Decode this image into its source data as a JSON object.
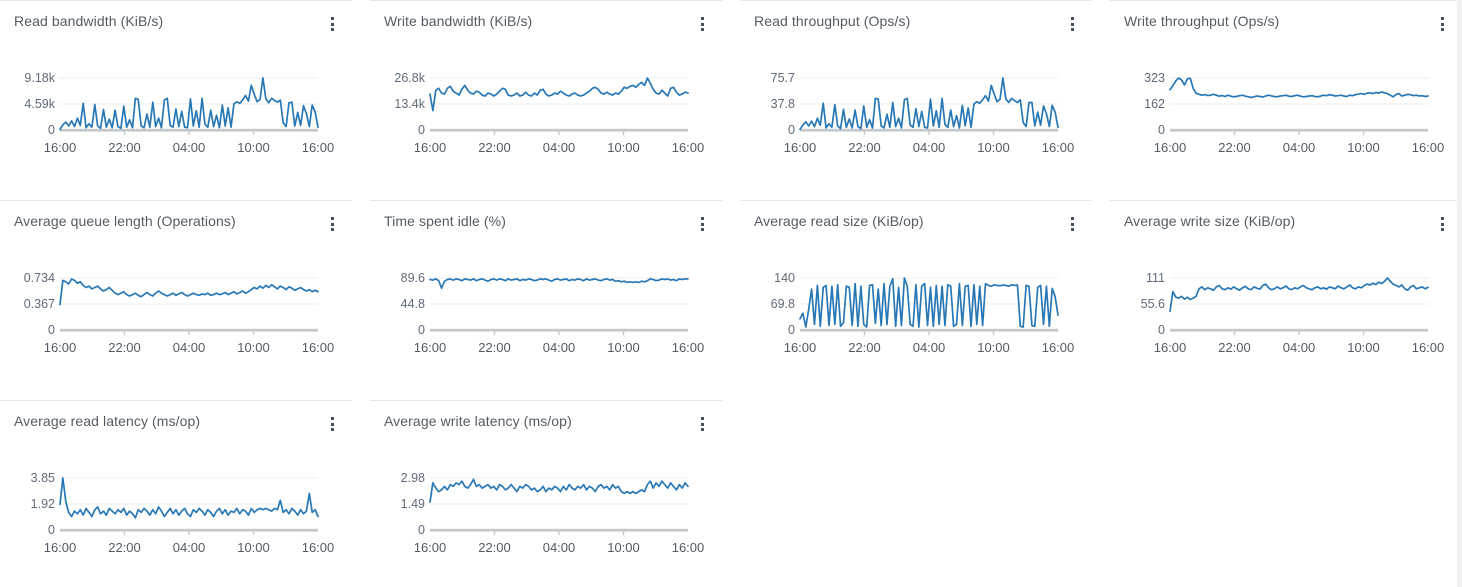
{
  "colors": {
    "line": "#2878b5",
    "grid": "#ececec",
    "baseline": "#c5c8ca",
    "title": "#545b64",
    "tick_label": "#5f6b7a",
    "x_tick_label": "#545b64",
    "card_border": "#e5e7e9",
    "menu_icon": "#414d5c",
    "background": "#ffffff"
  },
  "menu_icon": "vertical-ellipsis",
  "chart_data": [
    {
      "type": "line",
      "title": "Read bandwidth (KiB/s)",
      "y_max": 9.18,
      "y_tick_labels": [
        "9.18k",
        "4.59k",
        "0"
      ],
      "x_tick_labels": [
        "16:00",
        "22:00",
        "04:00",
        "10:00",
        "16:00"
      ],
      "legend": "off",
      "grid": "horizontal",
      "values": [
        0.1,
        0.9,
        1.4,
        0.7,
        1.6,
        0.6,
        2.1,
        0.8,
        4.7,
        0.4,
        1.1,
        0.5,
        4.5,
        0.7,
        0.3,
        3.6,
        0.5,
        1.9,
        0.4,
        3.5,
        0.6,
        0.3,
        4.2,
        0.5,
        1.8,
        0.4,
        5.6,
        5.4,
        0.7,
        0.4,
        2.8,
        0.5,
        4.9,
        0.6,
        2.1,
        0.4,
        5.3,
        5.6,
        0.8,
        0.5,
        3.7,
        0.6,
        3.3,
        0.5,
        0.4,
        5.5,
        0.7,
        3.4,
        0.5,
        5.6,
        1.0,
        0.5,
        3.5,
        0.6,
        2.6,
        0.4,
        4.4,
        0.7,
        3.9,
        0.5,
        4.6,
        5.0,
        4.7,
        5.3,
        6.1,
        5.1,
        7.9,
        6.3,
        5.0,
        5.4,
        9.18,
        5.5,
        4.8,
        5.6,
        5.2,
        4.9,
        5.3,
        1.3,
        0.6,
        4.8,
        4.9,
        0.7,
        3.1,
        0.8,
        4.3,
        2.9,
        0.6,
        4.4,
        3.2,
        0.5
      ]
    },
    {
      "type": "line",
      "title": "Write bandwidth (KiB/s)",
      "y_max": 26.8,
      "y_tick_labels": [
        "26.8k",
        "13.4k",
        "0"
      ],
      "x_tick_labels": [
        "16:00",
        "22:00",
        "04:00",
        "10:00",
        "16:00"
      ],
      "legend": "off",
      "grid": "horizontal",
      "values": [
        18.5,
        10,
        20.5,
        21.5,
        19,
        18.5,
        21.5,
        22.5,
        20,
        19,
        18,
        21,
        23,
        20.5,
        19,
        18.5,
        20,
        19.5,
        18,
        17.5,
        19,
        18.5,
        17.5,
        18.5,
        20,
        21.5,
        21,
        18,
        17.5,
        18,
        19,
        17.5,
        18,
        19.5,
        18,
        17.5,
        19,
        18,
        20.5,
        21,
        18.5,
        17.5,
        18,
        19,
        18.5,
        20,
        19,
        18,
        17.5,
        18.5,
        19,
        18,
        17.5,
        18,
        19,
        20,
        21.5,
        22,
        21,
        19,
        18.5,
        19.5,
        18.5,
        18,
        19,
        18.5,
        20,
        22,
        21.5,
        22.5,
        23,
        22,
        23.5,
        24.5,
        23,
        26.8,
        24,
        21,
        19,
        18.5,
        20.5,
        19,
        17.5,
        21.5,
        22,
        19.5,
        18,
        18.5,
        19.5,
        19
      ]
    },
    {
      "type": "line",
      "title": "Read throughput (Ops/s)",
      "y_max": 75.7,
      "y_tick_labels": [
        "75.7",
        "37.8",
        "0"
      ],
      "x_tick_labels": [
        "16:00",
        "22:00",
        "04:00",
        "10:00",
        "16:00"
      ],
      "legend": "off",
      "grid": "horizontal",
      "values": [
        1,
        7,
        12,
        6,
        13,
        5,
        17,
        7,
        39,
        3,
        9,
        4,
        37,
        6,
        2,
        30,
        4,
        16,
        3,
        29,
        5,
        2,
        35,
        4,
        15,
        3,
        46,
        45,
        6,
        3,
        23,
        4,
        40,
        5,
        17,
        3,
        44,
        46,
        7,
        4,
        31,
        5,
        27,
        4,
        3,
        45,
        6,
        28,
        4,
        46,
        8,
        4,
        29,
        5,
        21,
        3,
        36,
        6,
        32,
        4,
        38,
        41,
        39,
        44,
        50,
        42,
        65,
        52,
        41,
        45,
        75.7,
        45,
        40,
        46,
        43,
        40,
        44,
        11,
        5,
        40,
        40,
        6,
        26,
        7,
        35,
        24,
        5,
        36,
        26,
        4
      ]
    },
    {
      "type": "line",
      "title": "Write throughput (Ops/s)",
      "y_max": 323,
      "y_tick_labels": [
        "323",
        "162",
        "0"
      ],
      "x_tick_labels": [
        "16:00",
        "22:00",
        "04:00",
        "10:00",
        "16:00"
      ],
      "legend": "off",
      "grid": "horizontal",
      "values": [
        250,
        275,
        305,
        323,
        310,
        280,
        318,
        322,
        258,
        228,
        222,
        216,
        220,
        214,
        216,
        222,
        216,
        210,
        214,
        208,
        216,
        210,
        206,
        209,
        213,
        216,
        210,
        206,
        202,
        206,
        211,
        208,
        205,
        211,
        216,
        212,
        208,
        206,
        211,
        213,
        216,
        210,
        208,
        213,
        216,
        210,
        206,
        208,
        211,
        213,
        208,
        206,
        211,
        216,
        213,
        219,
        216,
        211,
        213,
        216,
        211,
        208,
        216,
        213,
        219,
        223,
        226,
        221,
        229,
        231,
        226,
        233,
        229,
        236,
        231,
        226,
        216,
        206,
        221,
        226,
        211,
        216,
        221,
        219,
        213,
        216,
        211,
        213,
        208,
        211
      ]
    },
    {
      "type": "line",
      "title": "Average queue length (Operations)",
      "y_max": 0.734,
      "y_tick_labels": [
        "0.734",
        "0.367",
        "0"
      ],
      "x_tick_labels": [
        "16:00",
        "22:00",
        "04:00",
        "10:00",
        "16:00"
      ],
      "legend": "off",
      "grid": "horizontal",
      "values": [
        0.36,
        0.7,
        0.68,
        0.65,
        0.72,
        0.7,
        0.66,
        0.68,
        0.63,
        0.6,
        0.62,
        0.58,
        0.6,
        0.62,
        0.58,
        0.55,
        0.57,
        0.6,
        0.56,
        0.52,
        0.5,
        0.52,
        0.54,
        0.5,
        0.48,
        0.5,
        0.52,
        0.49,
        0.47,
        0.5,
        0.53,
        0.5,
        0.48,
        0.52,
        0.55,
        0.52,
        0.5,
        0.48,
        0.5,
        0.52,
        0.49,
        0.51,
        0.53,
        0.5,
        0.48,
        0.5,
        0.52,
        0.5,
        0.49,
        0.51,
        0.5,
        0.52,
        0.49,
        0.5,
        0.52,
        0.5,
        0.51,
        0.53,
        0.5,
        0.52,
        0.54,
        0.51,
        0.53,
        0.55,
        0.52,
        0.54,
        0.57,
        0.6,
        0.58,
        0.62,
        0.59,
        0.63,
        0.6,
        0.64,
        0.61,
        0.58,
        0.62,
        0.6,
        0.57,
        0.61,
        0.59,
        0.56,
        0.58,
        0.6,
        0.57,
        0.55,
        0.57,
        0.54,
        0.56,
        0.54
      ]
    },
    {
      "type": "line",
      "title": "Time spent idle (%)",
      "y_max": 89.6,
      "y_tick_labels": [
        "89.6",
        "44.8",
        "0"
      ],
      "x_tick_labels": [
        "16:00",
        "22:00",
        "04:00",
        "10:00",
        "16:00"
      ],
      "legend": "off",
      "grid": "horizontal",
      "values": [
        87,
        86,
        88,
        85,
        72,
        84,
        87,
        88,
        86,
        88,
        87,
        85,
        88,
        87,
        86,
        88,
        85,
        87,
        88,
        86,
        84,
        87,
        88,
        86,
        88,
        87,
        85,
        88,
        86,
        87,
        88,
        85,
        87,
        86,
        88,
        87,
        85,
        86,
        88,
        87,
        88,
        86,
        84,
        87,
        88,
        86,
        87,
        88,
        85,
        87,
        86,
        88,
        87,
        85,
        88,
        86,
        87,
        88,
        86,
        85,
        87,
        88,
        86,
        87,
        84,
        85,
        83,
        84,
        82,
        83,
        82,
        83,
        82,
        84,
        83,
        85,
        88,
        87,
        85,
        86,
        88,
        87,
        88,
        86,
        87,
        85,
        88,
        87,
        88,
        88
      ]
    },
    {
      "type": "line",
      "title": "Average read size (KiB/op)",
      "y_max": 140,
      "y_tick_labels": [
        "140",
        "69.8",
        "0"
      ],
      "x_tick_labels": [
        "16:00",
        "22:00",
        "04:00",
        "10:00",
        "16:00"
      ],
      "legend": "off",
      "grid": "horizontal",
      "values": [
        30,
        45,
        8,
        55,
        110,
        15,
        120,
        10,
        115,
        120,
        12,
        118,
        15,
        122,
        10,
        20,
        118,
        115,
        12,
        125,
        10,
        118,
        15,
        8,
        120,
        122,
        18,
        110,
        12,
        125,
        15,
        118,
        138,
        10,
        115,
        12,
        140,
        118,
        15,
        10,
        122,
        8,
        118,
        125,
        12,
        115,
        10,
        120,
        15,
        118,
        12,
        122,
        118,
        10,
        15,
        125,
        12,
        118,
        120,
        10,
        122,
        15,
        118,
        12,
        125,
        120,
        118,
        122,
        120,
        119,
        121,
        120,
        118,
        122,
        120,
        121,
        10,
        8,
        120,
        118,
        12,
        10,
        115,
        120,
        15,
        118,
        10,
        112,
        90,
        40
      ]
    },
    {
      "type": "line",
      "title": "Average write size (KiB/op)",
      "y_max": 111,
      "y_tick_labels": [
        "111",
        "55.6",
        "0"
      ],
      "x_tick_labels": [
        "16:00",
        "22:00",
        "04:00",
        "10:00",
        "16:00"
      ],
      "legend": "off",
      "grid": "horizontal",
      "values": [
        40,
        82,
        70,
        68,
        72,
        66,
        70,
        65,
        68,
        72,
        88,
        92,
        86,
        90,
        88,
        85,
        92,
        95,
        88,
        86,
        90,
        87,
        92,
        88,
        85,
        90,
        93,
        88,
        86,
        92,
        89,
        87,
        95,
        98,
        90,
        86,
        88,
        92,
        88,
        90,
        94,
        88,
        86,
        90,
        88,
        92,
        95,
        90,
        88,
        86,
        90,
        92,
        88,
        90,
        87,
        92,
        90,
        88,
        94,
        90,
        88,
        92,
        96,
        90,
        88,
        92,
        90,
        95,
        98,
        96,
        100,
        97,
        102,
        99,
        104,
        111,
        104,
        98,
        95,
        92,
        96,
        88,
        85,
        92,
        95,
        88,
        90,
        92,
        88,
        91
      ]
    },
    {
      "type": "line",
      "title": "Average read latency (ms/op)",
      "y_max": 3.85,
      "y_tick_labels": [
        "3.85",
        "1.92",
        "0"
      ],
      "x_tick_labels": [
        "16:00",
        "22:00",
        "04:00",
        "10:00",
        "16:00"
      ],
      "legend": "off",
      "grid": "horizontal",
      "values": [
        1.9,
        3.85,
        2.1,
        1.3,
        1.0,
        1.4,
        1.2,
        1.5,
        1.1,
        1.6,
        1.3,
        1.0,
        1.5,
        1.7,
        1.2,
        1.4,
        1.1,
        1.6,
        1.4,
        1.2,
        1.5,
        1.3,
        1.6,
        1.1,
        1.4,
        1.2,
        0.9,
        1.5,
        1.3,
        1.6,
        1.4,
        1.1,
        1.5,
        1.2,
        1.7,
        1.4,
        1.0,
        1.3,
        1.6,
        1.2,
        1.5,
        1.1,
        1.4,
        1.6,
        1.2,
        1.0,
        1.5,
        1.3,
        1.6,
        1.4,
        1.1,
        1.5,
        1.3,
        1.0,
        1.4,
        1.6,
        1.2,
        1.5,
        1.1,
        1.4,
        1.3,
        1.6,
        1.2,
        1.5,
        1.4,
        1.1,
        1.6,
        1.3,
        1.5,
        1.6,
        1.5,
        1.6,
        1.5,
        1.4,
        1.6,
        1.5,
        2.2,
        1.3,
        1.5,
        1.2,
        1.6,
        1.4,
        1.1,
        1.5,
        1.2,
        1.4,
        2.7,
        1.3,
        1.5,
        1.0
      ]
    },
    {
      "type": "line",
      "title": "Average write latency (ms/op)",
      "y_max": 2.98,
      "y_tick_labels": [
        "2.98",
        "1.49",
        "0"
      ],
      "x_tick_labels": [
        "16:00",
        "22:00",
        "04:00",
        "10:00",
        "16:00"
      ],
      "legend": "off",
      "grid": "horizontal",
      "values": [
        1.6,
        2.7,
        2.4,
        2.2,
        2.3,
        2.5,
        2.3,
        2.6,
        2.5,
        2.7,
        2.6,
        2.8,
        2.5,
        2.4,
        2.6,
        2.9,
        2.5,
        2.6,
        2.4,
        2.5,
        2.6,
        2.4,
        2.5,
        2.3,
        2.6,
        2.5,
        2.3,
        2.4,
        2.6,
        2.4,
        2.2,
        2.5,
        2.4,
        2.6,
        2.5,
        2.3,
        2.4,
        2.2,
        2.3,
        2.5,
        2.2,
        2.4,
        2.3,
        2.5,
        2.4,
        2.2,
        2.5,
        2.3,
        2.6,
        2.4,
        2.3,
        2.5,
        2.4,
        2.6,
        2.3,
        2.5,
        2.4,
        2.2,
        2.5,
        2.6,
        2.4,
        2.5,
        2.3,
        2.6,
        2.4,
        2.5,
        2.2,
        2.1,
        2.2,
        2.1,
        2.2,
        2.1,
        2.2,
        2.3,
        2.2,
        2.6,
        2.8,
        2.4,
        2.7,
        2.5,
        2.8,
        2.6,
        2.4,
        2.7,
        2.5,
        2.3,
        2.6,
        2.4,
        2.7,
        2.5
      ]
    }
  ]
}
